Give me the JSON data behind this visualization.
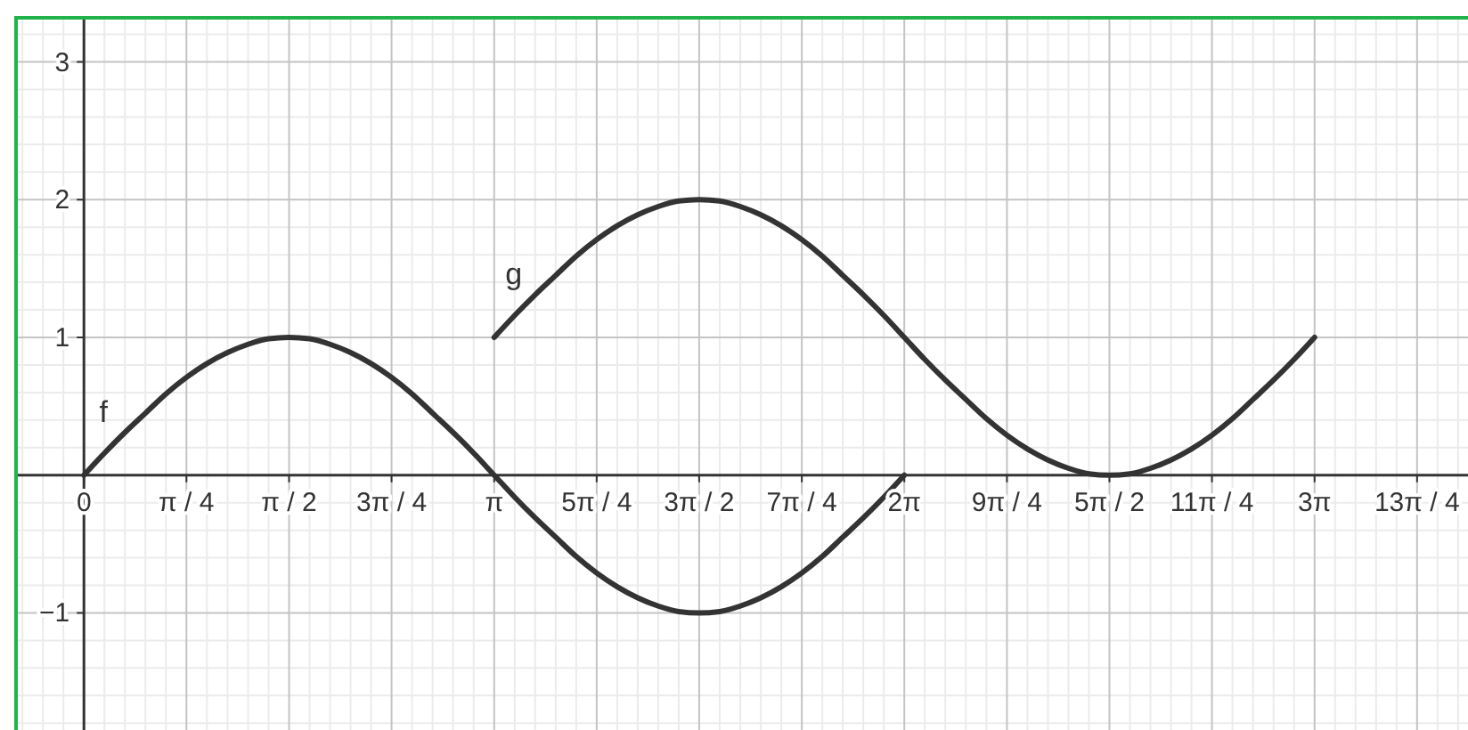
{
  "chart_data": {
    "type": "line",
    "xlim": [
      -0.52,
      10.6
    ],
    "ylim": [
      -1.85,
      3.32
    ],
    "xticks": [
      {
        "value": -0.471,
        "label": null
      },
      {
        "value": -0.314,
        "label": null
      },
      {
        "value": -0.157,
        "label": null
      },
      {
        "value": 0,
        "label": "0"
      },
      {
        "value": 0.157,
        "label": null
      },
      {
        "value": 0.314,
        "label": null
      },
      {
        "value": 0.471,
        "label": null
      },
      {
        "value": 0.628,
        "label": null
      },
      {
        "value": 0.785,
        "label": "π / 4"
      },
      {
        "value": 0.942,
        "label": null
      },
      {
        "value": 1.1,
        "label": null
      },
      {
        "value": 1.257,
        "label": null
      },
      {
        "value": 1.414,
        "label": null
      },
      {
        "value": 1.571,
        "label": "π / 2"
      },
      {
        "value": 1.728,
        "label": null
      },
      {
        "value": 1.885,
        "label": null
      },
      {
        "value": 2.042,
        "label": null
      },
      {
        "value": 2.199,
        "label": null
      },
      {
        "value": 2.356,
        "label": "3π / 4"
      },
      {
        "value": 2.513,
        "label": null
      },
      {
        "value": 2.67,
        "label": null
      },
      {
        "value": 2.827,
        "label": null
      },
      {
        "value": 2.985,
        "label": null
      },
      {
        "value": 3.142,
        "label": "π"
      },
      {
        "value": 3.299,
        "label": null
      },
      {
        "value": 3.456,
        "label": null
      },
      {
        "value": 3.613,
        "label": null
      },
      {
        "value": 3.77,
        "label": null
      },
      {
        "value": 3.927,
        "label": "5π / 4"
      },
      {
        "value": 4.084,
        "label": null
      },
      {
        "value": 4.241,
        "label": null
      },
      {
        "value": 4.398,
        "label": null
      },
      {
        "value": 4.555,
        "label": null
      },
      {
        "value": 4.712,
        "label": "3π / 2"
      },
      {
        "value": 4.869,
        "label": null
      },
      {
        "value": 5.027,
        "label": null
      },
      {
        "value": 5.184,
        "label": null
      },
      {
        "value": 5.341,
        "label": null
      },
      {
        "value": 5.498,
        "label": "7π / 4"
      },
      {
        "value": 5.655,
        "label": null
      },
      {
        "value": 5.812,
        "label": null
      },
      {
        "value": 5.969,
        "label": null
      },
      {
        "value": 6.126,
        "label": null
      },
      {
        "value": 6.283,
        "label": "2π"
      },
      {
        "value": 6.44,
        "label": null
      },
      {
        "value": 6.597,
        "label": null
      },
      {
        "value": 6.754,
        "label": null
      },
      {
        "value": 6.912,
        "label": null
      },
      {
        "value": 7.069,
        "label": "9π / 4"
      },
      {
        "value": 7.226,
        "label": null
      },
      {
        "value": 7.383,
        "label": null
      },
      {
        "value": 7.54,
        "label": null
      },
      {
        "value": 7.697,
        "label": null
      },
      {
        "value": 7.854,
        "label": "5π / 2"
      },
      {
        "value": 8.011,
        "label": null
      },
      {
        "value": 8.168,
        "label": null
      },
      {
        "value": 8.325,
        "label": null
      },
      {
        "value": 8.482,
        "label": null
      },
      {
        "value": 8.639,
        "label": "11π / 4"
      },
      {
        "value": 8.796,
        "label": null
      },
      {
        "value": 8.954,
        "label": null
      },
      {
        "value": 9.111,
        "label": null
      },
      {
        "value": 9.268,
        "label": null
      },
      {
        "value": 9.425,
        "label": "3π"
      },
      {
        "value": 9.582,
        "label": null
      },
      {
        "value": 9.739,
        "label": null
      },
      {
        "value": 9.896,
        "label": null
      },
      {
        "value": 10.053,
        "label": null
      },
      {
        "value": 10.21,
        "label": "13π / 4"
      },
      {
        "value": 10.367,
        "label": null
      },
      {
        "value": 10.524,
        "label": null
      }
    ],
    "yticks": [
      {
        "value": -1.8,
        "label": null
      },
      {
        "value": -1.6,
        "label": null
      },
      {
        "value": -1.4,
        "label": null
      },
      {
        "value": -1.2,
        "label": null
      },
      {
        "value": -1,
        "label": "−1"
      },
      {
        "value": -0.8,
        "label": null
      },
      {
        "value": -0.6,
        "label": null
      },
      {
        "value": -0.4,
        "label": null
      },
      {
        "value": -0.2,
        "label": null
      },
      {
        "value": 0.2,
        "label": null
      },
      {
        "value": 0.4,
        "label": null
      },
      {
        "value": 0.6,
        "label": null
      },
      {
        "value": 0.8,
        "label": null
      },
      1,
      {
        "value": 1.2,
        "label": null
      },
      {
        "value": 1.4,
        "label": null
      },
      {
        "value": 1.6,
        "label": null
      },
      {
        "value": 1.8,
        "label": null
      },
      2,
      {
        "value": 2.2,
        "label": null
      },
      {
        "value": 2.4,
        "label": null
      },
      {
        "value": 2.6,
        "label": null
      },
      {
        "value": 2.8,
        "label": null
      },
      3,
      {
        "value": 3.2,
        "label": null
      }
    ],
    "grid": true,
    "series": [
      {
        "name": "f",
        "color": "#333333",
        "x": [
          0,
          0.157,
          0.314,
          0.471,
          0.628,
          0.785,
          0.942,
          1.1,
          1.257,
          1.414,
          1.571,
          1.728,
          1.885,
          2.042,
          2.199,
          2.356,
          2.513,
          2.67,
          2.827,
          2.985,
          3.142,
          3.299,
          3.456,
          3.613,
          3.77,
          3.927,
          4.084,
          4.241,
          4.398,
          4.555,
          4.712,
          4.869,
          5.027,
          5.184,
          5.341,
          5.498,
          5.655,
          5.812,
          5.969,
          6.126,
          6.283
        ],
        "values": [
          0,
          0.16,
          0.31,
          0.45,
          0.59,
          0.71,
          0.81,
          0.89,
          0.95,
          0.99,
          1,
          0.99,
          0.95,
          0.89,
          0.81,
          0.71,
          0.59,
          0.45,
          0.31,
          0.16,
          0,
          -0.16,
          -0.31,
          -0.45,
          -0.59,
          -0.71,
          -0.81,
          -0.89,
          -0.95,
          -0.99,
          -1,
          -0.99,
          -0.95,
          -0.89,
          -0.81,
          -0.71,
          -0.59,
          -0.45,
          -0.31,
          -0.16,
          0
        ]
      },
      {
        "name": "g",
        "color": "#333333",
        "x": [
          3.142,
          3.299,
          3.456,
          3.613,
          3.77,
          3.927,
          4.084,
          4.241,
          4.398,
          4.555,
          4.712,
          4.869,
          5.027,
          5.184,
          5.341,
          5.498,
          5.655,
          5.812,
          5.969,
          6.126,
          6.283,
          6.44,
          6.597,
          6.754,
          6.912,
          7.069,
          7.226,
          7.383,
          7.54,
          7.697,
          7.854,
          8.011,
          8.168,
          8.325,
          8.482,
          8.639,
          8.796,
          8.954,
          9.111,
          9.268,
          9.425
        ],
        "values": [
          1,
          1.16,
          1.31,
          1.45,
          1.59,
          1.71,
          1.81,
          1.89,
          1.95,
          1.99,
          2,
          1.99,
          1.95,
          1.89,
          1.81,
          1.71,
          1.59,
          1.45,
          1.31,
          1.16,
          1,
          0.84,
          0.69,
          0.55,
          0.41,
          0.29,
          0.19,
          0.11,
          0.05,
          0.01,
          0,
          0.01,
          0.05,
          0.11,
          0.19,
          0.29,
          0.41,
          0.55,
          0.69,
          0.84,
          1
        ]
      }
    ]
  }
}
